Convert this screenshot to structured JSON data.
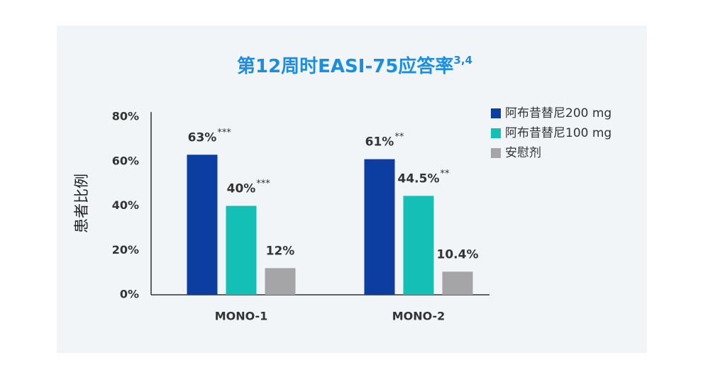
{
  "chart_data": {
    "type": "bar",
    "title": "第12周时EASI-75应答率",
    "title_superscript": "3,4",
    "y_label": "患者比例",
    "categories": [
      "MONO-1",
      "MONO-2"
    ],
    "series": [
      {
        "name": "阿布昔替尼200 mg",
        "color": "#0b3ea0",
        "values": [
          63,
          61
        ],
        "value_labels": [
          "63%",
          "61%"
        ],
        "significance": [
          "***",
          "**"
        ]
      },
      {
        "name": "阿布昔替尼100 mg",
        "color": "#14c0b6",
        "values": [
          40,
          44.5
        ],
        "value_labels": [
          "40%",
          "44.5%"
        ],
        "significance": [
          "***",
          "**"
        ]
      },
      {
        "name": "安慰剂",
        "color": "#a5a5a7",
        "values": [
          12,
          10.4
        ],
        "value_labels": [
          "12%",
          "10.4%"
        ]
      }
    ],
    "ylim": [
      0,
      80
    ],
    "yticks": [
      {
        "value": 0,
        "label": "0%"
      },
      {
        "value": 20,
        "label": "20%"
      },
      {
        "value": 40,
        "label": "40%"
      },
      {
        "value": 60,
        "label": "60%"
      },
      {
        "value": 80,
        "label": "80%"
      }
    ],
    "grid": false,
    "legend": "top-right"
  }
}
